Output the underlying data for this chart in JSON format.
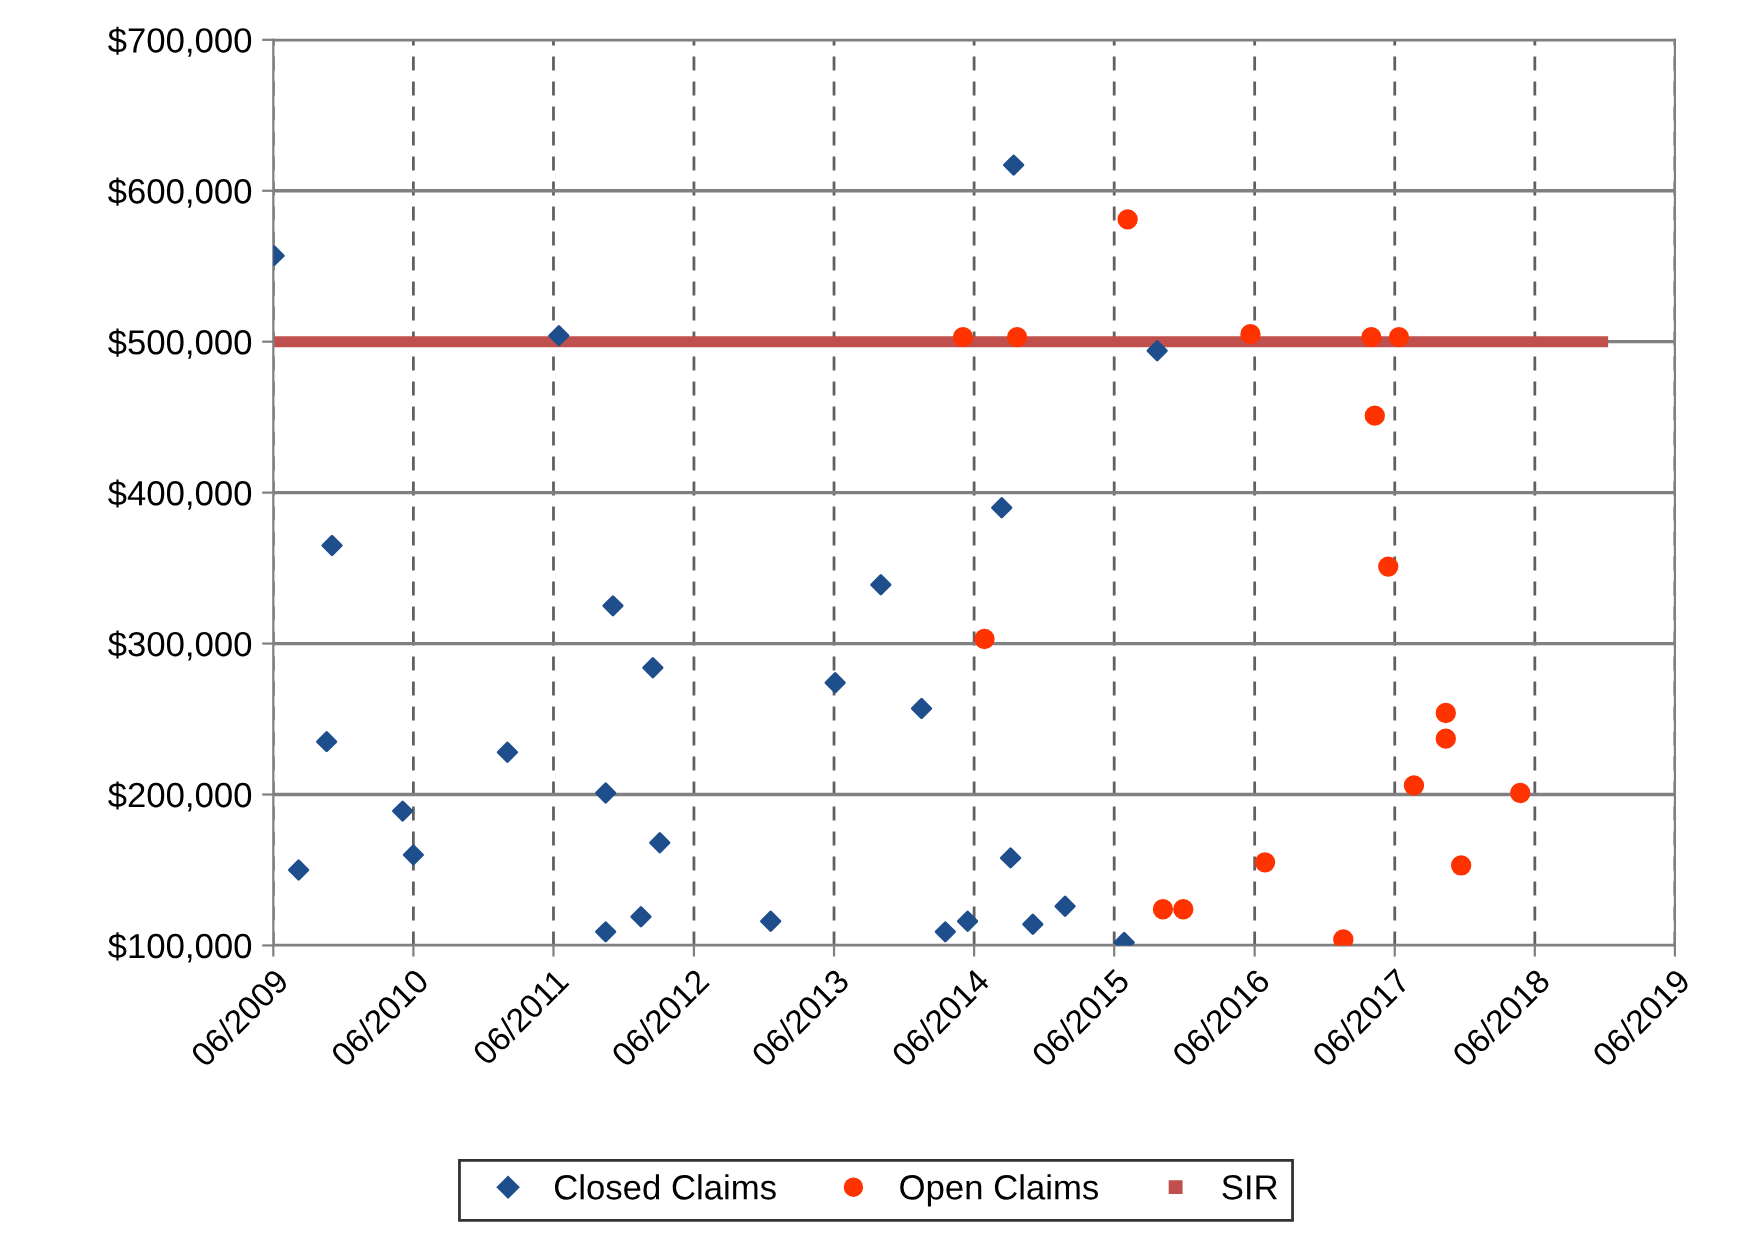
{
  "chart_data": {
    "type": "scatter",
    "xlim": [
      "2009-06-01",
      "2019-06-01"
    ],
    "xticks": [
      {
        "value": "2009-06-01",
        "label": "06/2009"
      },
      {
        "value": "2010-06-01",
        "label": "06/2010"
      },
      {
        "value": "2011-06-01",
        "label": "06/2011"
      },
      {
        "value": "2012-06-01",
        "label": "06/2012"
      },
      {
        "value": "2013-06-01",
        "label": "06/2013"
      },
      {
        "value": "2014-06-01",
        "label": "06/2014"
      },
      {
        "value": "2015-06-01",
        "label": "06/2015"
      },
      {
        "value": "2016-06-01",
        "label": "06/2016"
      },
      {
        "value": "2017-06-01",
        "label": "06/2017"
      },
      {
        "value": "2018-06-01",
        "label": "06/2018"
      },
      {
        "value": "2019-06-01",
        "label": "06/2019"
      }
    ],
    "ylim": [
      100000,
      700000
    ],
    "yticks": [
      {
        "value": 100000,
        "label": "$100,000"
      },
      {
        "value": 200000,
        "label": "$200,000"
      },
      {
        "value": 300000,
        "label": "$300,000"
      },
      {
        "value": 400000,
        "label": "$400,000"
      },
      {
        "value": 500000,
        "label": "$500,000"
      },
      {
        "value": 600000,
        "label": "$600,000"
      },
      {
        "value": 700000,
        "label": "$700,000"
      }
    ],
    "grid": true,
    "legend": "bottom",
    "series": [
      {
        "name": "Closed Claims",
        "marker": "diamond",
        "color": "#1f4e8c",
        "x": [
          "2009-06-03",
          "2011-06-15",
          "2009-11-01",
          "2011-11-03",
          "2013-10-01",
          "2012-02-15",
          "2013-06-04",
          "2009-10-18",
          "2011-02-01",
          "2014-01-15",
          "2011-10-15",
          "2010-05-04",
          "2010-06-01",
          "2012-03-04",
          "2009-08-06",
          "2011-10-15",
          "2012-01-15",
          "2012-12-18",
          "2014-03-18",
          "2014-05-15",
          "2014-09-12",
          "2015-09-21",
          "2014-08-12",
          "2014-09-04",
          "2014-11-01",
          "2015-01-24",
          "2015-06-27"
        ],
        "values": [
          557000,
          504000,
          365000,
          325000,
          339000,
          284000,
          274000,
          235000,
          228000,
          257000,
          201000,
          189000,
          160000,
          168000,
          150000,
          109000,
          119000,
          116000,
          109000,
          116000,
          617000,
          494000,
          390000,
          158000,
          114000,
          126000,
          102000
        ]
      },
      {
        "name": "Open Claims",
        "marker": "circle",
        "color": "#ff3300",
        "x": [
          "2015-07-06",
          "2014-05-03",
          "2014-09-21",
          "2016-05-21",
          "2017-04-01",
          "2017-06-12",
          "2017-04-10",
          "2017-05-15",
          "2014-06-28",
          "2017-10-12",
          "2017-10-12",
          "2017-07-21",
          "2018-04-24",
          "2016-06-28",
          "2017-11-21",
          "2015-10-06",
          "2015-11-28",
          "2017-01-18"
        ],
        "values": [
          581000,
          503000,
          503000,
          505000,
          503000,
          503000,
          451000,
          351000,
          303000,
          254000,
          237000,
          206000,
          201000,
          155000,
          153000,
          124000,
          124000,
          104000
        ]
      },
      {
        "name": "SIR",
        "type": "line",
        "marker": "none",
        "color": "#c0504d",
        "x": [
          "2009-06-01",
          "2018-12-09"
        ],
        "values": [
          500000,
          500000
        ]
      }
    ]
  }
}
